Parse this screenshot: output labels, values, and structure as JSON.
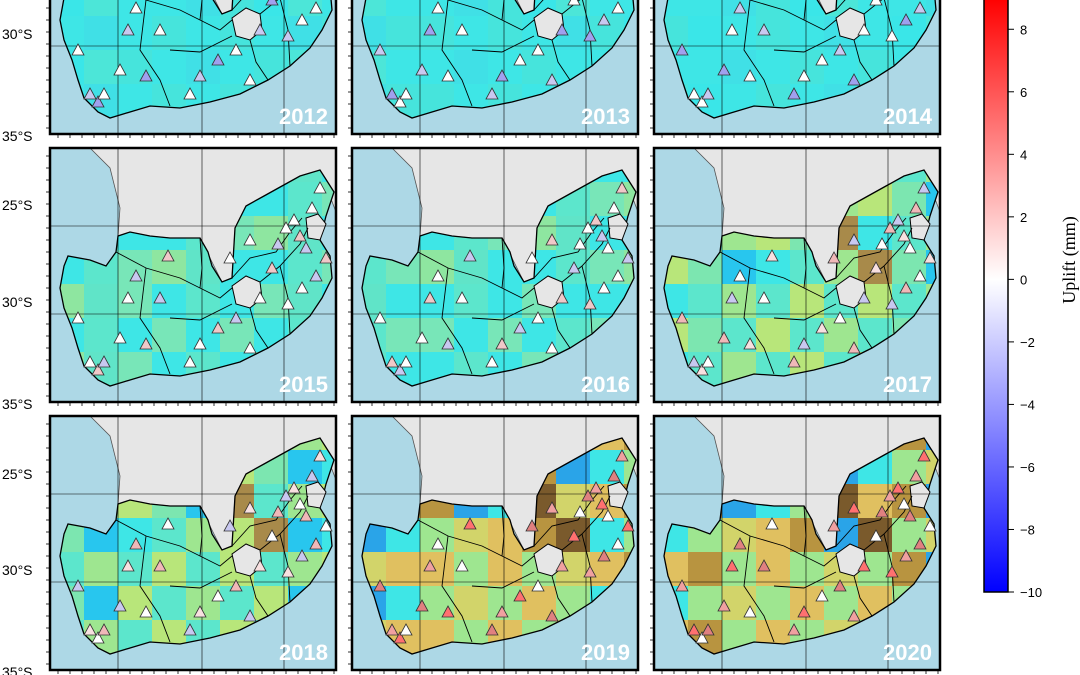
{
  "figure": {
    "panels": [
      {
        "year": "2012",
        "level": "low"
      },
      {
        "year": "2013",
        "level": "low"
      },
      {
        "year": "2014",
        "level": "low"
      },
      {
        "year": "2015",
        "level": "low-mid"
      },
      {
        "year": "2016",
        "level": "low-mid"
      },
      {
        "year": "2017",
        "level": "mid"
      },
      {
        "year": "2018",
        "level": "mid"
      },
      {
        "year": "2019",
        "level": "high"
      },
      {
        "year": "2020",
        "level": "high"
      }
    ],
    "lat_labels": [
      "30°S",
      "35°S",
      "25°S",
      "30°S",
      "35°S",
      "25°S",
      "30°S",
      "35°S"
    ],
    "colors": {
      "land_grey": "#e6e6e6",
      "ocean": "#add8e6",
      "cyan": "#3ee6e6"
    }
  },
  "colorbar": {
    "label": "Uplift (mm)",
    "ticks": [
      "8",
      "6",
      "4",
      "2",
      "0",
      "−2",
      "−4",
      "−6",
      "−8",
      "−10"
    ],
    "tick_values": [
      8,
      6,
      4,
      2,
      0,
      -2,
      -4,
      -6,
      -8,
      -10
    ],
    "range": [
      -10,
      9
    ],
    "colors": {
      "max": "#ff0000",
      "zero": "#ffffff",
      "min": "#0000ff"
    }
  }
}
